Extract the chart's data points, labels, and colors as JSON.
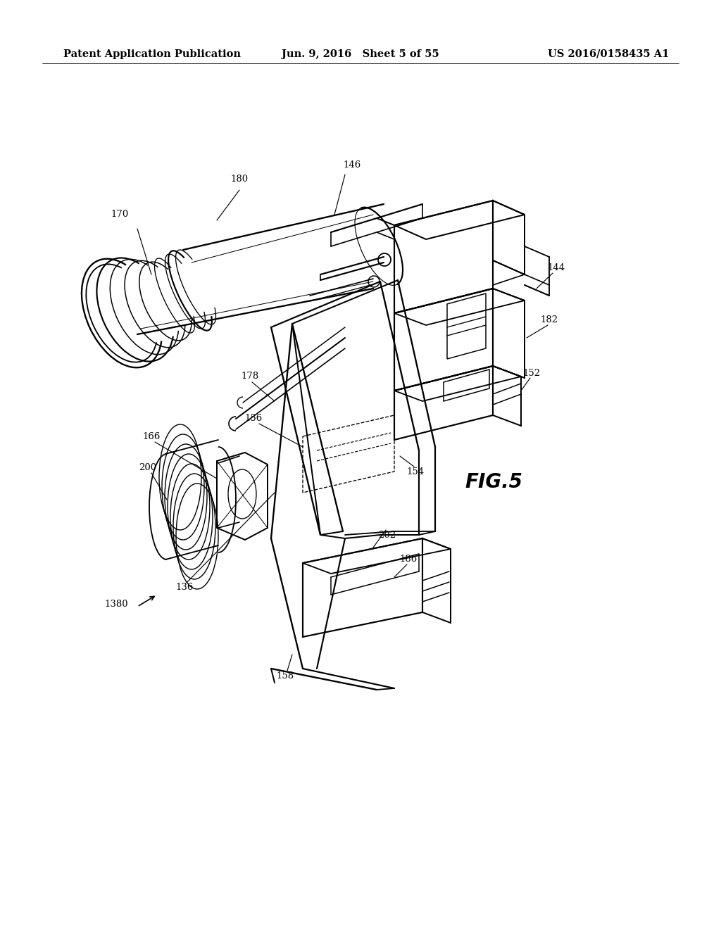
{
  "background_color": "#ffffff",
  "header_left": "Patent Application Publication",
  "header_center": "Jun. 9, 2016   Sheet 5 of 55",
  "header_right": "US 2016/0158435 A1",
  "fig_label": "FIG.5",
  "header_fontsize": 10.5,
  "fig_label_fontsize": 20,
  "label_fontsize": 9.5,
  "line_color": "#000000",
  "line_width": 1.2
}
